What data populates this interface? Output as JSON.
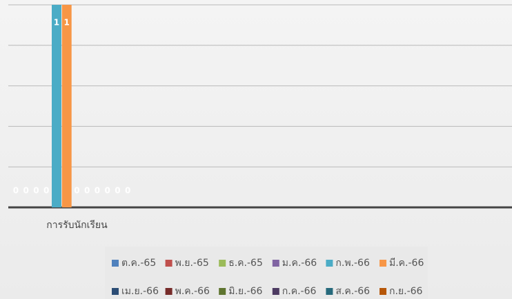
{
  "chart_data": {
    "type": "bar",
    "categories": [
      "การรับนักเรียน"
    ],
    "series": [
      {
        "name": "ต.ค.-65",
        "color": "#4f81bd",
        "values": [
          0
        ]
      },
      {
        "name": "พ.ย.-65",
        "color": "#c0504d",
        "values": [
          0
        ]
      },
      {
        "name": "ธ.ค.-65",
        "color": "#9bbb59",
        "values": [
          0
        ]
      },
      {
        "name": "ม.ค.-66",
        "color": "#8064a2",
        "values": [
          0
        ]
      },
      {
        "name": "ก.พ.-66",
        "color": "#4bacc6",
        "values": [
          1
        ]
      },
      {
        "name": "มี.ค.-66",
        "color": "#f79646",
        "values": [
          1
        ]
      },
      {
        "name": "เม.ย.-66",
        "color": "#2c4d75",
        "values": [
          0
        ]
      },
      {
        "name": "พ.ค.-66",
        "color": "#772c2a",
        "values": [
          0
        ]
      },
      {
        "name": "มิ.ย.-66",
        "color": "#5f7530",
        "values": [
          0
        ]
      },
      {
        "name": "ก.ค.-66",
        "color": "#4d3b62",
        "values": [
          0
        ]
      },
      {
        "name": "ส.ค.-66",
        "color": "#276a7c",
        "values": [
          0
        ]
      },
      {
        "name": "ก.ย.-66",
        "color": "#b65708",
        "values": [
          0
        ]
      }
    ],
    "ylim": [
      0,
      1
    ],
    "yticks": [
      0,
      0.2,
      0.4,
      0.6,
      0.8,
      1
    ],
    "grid": true,
    "legend": "bottom"
  }
}
